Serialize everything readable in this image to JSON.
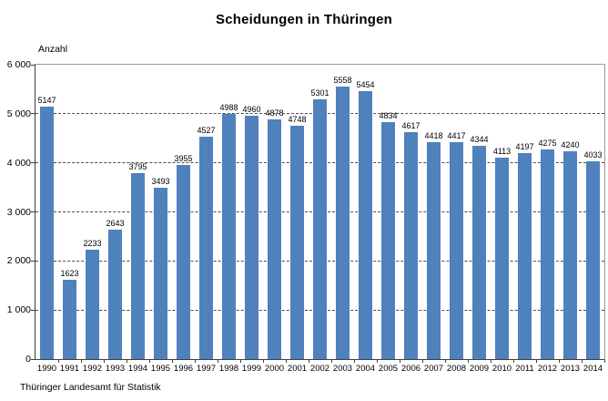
{
  "chart_data": {
    "type": "bar",
    "title": "Scheidungen in Thüringen",
    "ylabel": "Anzahl",
    "xlabel": "",
    "source": "Thüringer Landesamt für Statistik",
    "categories": [
      "1990",
      "1991",
      "1992",
      "1993",
      "1994",
      "1995",
      "1996",
      "1997",
      "1998",
      "1999",
      "2000",
      "2001",
      "2002",
      "2003",
      "2004",
      "2005",
      "2006",
      "2007",
      "2008",
      "2009",
      "2010",
      "2011",
      "2012",
      "2013",
      "2014"
    ],
    "values": [
      5147,
      1623,
      2233,
      2643,
      3795,
      3493,
      3955,
      4527,
      4988,
      4960,
      4878,
      4748,
      5301,
      5558,
      5454,
      4834,
      4617,
      4418,
      4417,
      4344,
      4113,
      4197,
      4275,
      4240,
      4033
    ],
    "ylim": [
      0,
      6000
    ],
    "yticks": [
      {
        "value": 0,
        "label": "0"
      },
      {
        "value": 1000,
        "label": "1 000"
      },
      {
        "value": 2000,
        "label": "2 000"
      },
      {
        "value": 3000,
        "label": "3 000"
      },
      {
        "value": 4000,
        "label": "4 000"
      },
      {
        "value": 5000,
        "label": "5 000"
      },
      {
        "value": 6000,
        "label": "6 000"
      }
    ],
    "grid": "horizontal-dashed",
    "legend": "none",
    "bar_labels": true,
    "colors": {
      "bar": "#4f81bd",
      "axis": "#404040",
      "plot_border": "#9b9b9b",
      "grid": "#4d4d4d",
      "text": "#000000"
    }
  }
}
